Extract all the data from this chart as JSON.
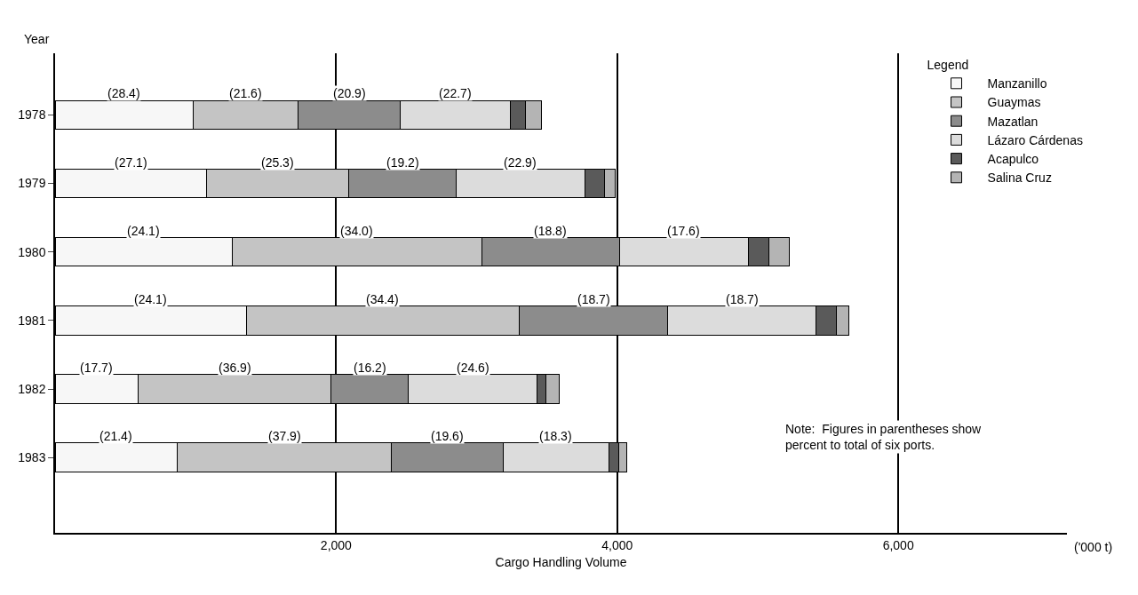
{
  "chart_data": {
    "type": "bar",
    "orientation": "horizontal",
    "stacked": true,
    "categories": [
      "1978",
      "1979",
      "1980",
      "1981",
      "1982",
      "1983"
    ],
    "series": [
      {
        "name": "Manzanillo",
        "color": "#f7f7f7",
        "values": [
          985,
          1080,
          1260,
          1360,
          590,
          870
        ]
      },
      {
        "name": "Guaymas",
        "color": "#c4c4c4",
        "values": [
          745,
          1010,
          1775,
          1945,
          1375,
          1525
        ]
      },
      {
        "name": "Mazatlan",
        "color": "#8c8c8c",
        "values": [
          725,
          765,
          980,
          1055,
          550,
          795
        ]
      },
      {
        "name": "Lázaro Cárdenas",
        "color": "#dcdcdc",
        "values": [
          785,
          913,
          920,
          1055,
          915,
          750
        ]
      },
      {
        "name": "Acapulco",
        "color": "#5a5a5a",
        "values": [
          105,
          140,
          145,
          145,
          65,
          70
        ]
      },
      {
        "name": "Salina Cruz",
        "color": "#b4b4b4",
        "values": [
          115,
          80,
          145,
          90,
          95,
          60
        ]
      }
    ],
    "xlim": [
      0,
      7200
    ],
    "xticks": [
      {
        "value": 0,
        "label": null
      },
      {
        "value": 2000,
        "label": "2,000"
      },
      {
        "value": 4000,
        "label": "4,000"
      },
      {
        "value": 6000,
        "label": "6,000"
      }
    ],
    "xlabel": "Cargo Handling Volume",
    "ylabel": "Year",
    "legend_title": "Legend",
    "annotations": [
      "('000 t)",
      "Note:  Figures in parentheses show percent to total of six ports.",
      "(28.4)",
      "(21.6)",
      "(20.9)",
      "(22.7)",
      "(27.1)",
      "(25.3)",
      "(19.2)",
      "(22.9)",
      "(24.1)",
      "(34.0)",
      "(18.8)",
      "(17.6)",
      "(24.1)",
      "(34.4)",
      "(18.7)",
      "(18.7)",
      "(17.7)",
      "(36.9)",
      "(16.2)",
      "(24.6)",
      "(21.4)",
      "(37.9)",
      "(19.6)",
      "(18.3)"
    ],
    "grid": "x",
    "legend": "top right"
  }
}
